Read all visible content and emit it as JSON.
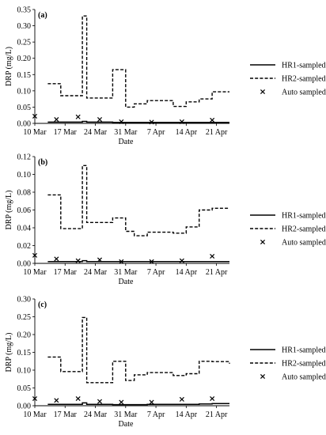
{
  "chart_data": [
    {
      "type": "line",
      "panel_label": "(a)",
      "xlabel": "Date",
      "ylabel": "DRP (mg/L)",
      "xlim": [
        "2020-03-10",
        "2020-04-24"
      ],
      "ylim": [
        0,
        0.35
      ],
      "yticks": [
        0.0,
        0.05,
        0.1,
        0.15,
        0.2,
        0.25,
        0.3,
        0.35
      ],
      "ytick_labels": [
        "0.00",
        "0.05",
        "0.10",
        "0.15",
        "0.20",
        "0.25",
        "0.30",
        "0.35"
      ],
      "xticks": [
        "2020-03-10",
        "2020-03-17",
        "2020-03-24",
        "2020-03-31",
        "2020-04-07",
        "2020-04-14",
        "2020-04-21"
      ],
      "xtick_labels": [
        "10 Mar",
        "17 Mar",
        "24 Mar",
        "31 Mar",
        "7 Apr",
        "14 Apr",
        "21 Apr"
      ],
      "grid": false,
      "legend_position": "right",
      "series": [
        {
          "name": "HR1-sampled",
          "style": "solid",
          "x": [
            "2020-03-13",
            "2020-03-16",
            "2020-03-18",
            "2020-03-21",
            "2020-03-22",
            "2020-03-25",
            "2020-03-28",
            "2020-03-31",
            "2020-04-02",
            "2020-04-05",
            "2020-04-07",
            "2020-04-11",
            "2020-04-14",
            "2020-04-17",
            "2020-04-20",
            "2020-04-24"
          ],
          "y": [
            0.004,
            0.004,
            0.004,
            0.006,
            0.004,
            0.004,
            0.003,
            0.003,
            0.003,
            0.003,
            0.003,
            0.003,
            0.003,
            0.003,
            0.003,
            0.003
          ]
        },
        {
          "name": "HR2-sampled",
          "style": "dashed",
          "x": [
            "2020-03-13",
            "2020-03-16",
            "2020-03-18",
            "2020-03-21",
            "2020-03-22",
            "2020-03-25",
            "2020-03-28",
            "2020-03-31",
            "2020-04-02",
            "2020-04-05",
            "2020-04-07",
            "2020-04-11",
            "2020-04-14",
            "2020-04-17",
            "2020-04-20",
            "2020-04-24"
          ],
          "y": [
            0.122,
            0.085,
            0.085,
            0.33,
            0.078,
            0.078,
            0.165,
            0.05,
            0.06,
            0.07,
            0.07,
            0.052,
            0.066,
            0.075,
            0.097,
            0.097
          ]
        },
        {
          "name": "Auto sampled",
          "style": "marker-x",
          "x": [
            "2020-03-10",
            "2020-03-15",
            "2020-03-20",
            "2020-03-25",
            "2020-03-30",
            "2020-04-06",
            "2020-04-13",
            "2020-04-20"
          ],
          "y": [
            0.022,
            0.012,
            0.02,
            0.012,
            0.005,
            0.004,
            0.005,
            0.01
          ]
        }
      ]
    },
    {
      "type": "line",
      "panel_label": "(b)",
      "xlabel": "Date",
      "ylabel": "DRP (mg/L)",
      "xlim": [
        "2020-03-10",
        "2020-04-24"
      ],
      "ylim": [
        0,
        0.12
      ],
      "yticks": [
        0.0,
        0.02,
        0.04,
        0.06,
        0.08,
        0.1,
        0.12
      ],
      "ytick_labels": [
        "0.00",
        "0.02",
        "0.04",
        "0.06",
        "0.08",
        "0.10",
        "0.12"
      ],
      "xticks": [
        "2020-03-10",
        "2020-03-17",
        "2020-03-24",
        "2020-03-31",
        "2020-04-07",
        "2020-04-14",
        "2020-04-21"
      ],
      "xtick_labels": [
        "10 Mar",
        "17 Mar",
        "24 Mar",
        "31 Mar",
        "7 Apr",
        "14 Apr",
        "21 Apr"
      ],
      "grid": false,
      "legend_position": "right",
      "series": [
        {
          "name": "HR1-sampled",
          "style": "solid",
          "x": [
            "2020-03-13",
            "2020-03-16",
            "2020-03-18",
            "2020-03-21",
            "2020-03-22",
            "2020-03-25",
            "2020-03-28",
            "2020-03-31",
            "2020-04-02",
            "2020-04-05",
            "2020-04-07",
            "2020-04-11",
            "2020-04-14",
            "2020-04-17",
            "2020-04-20",
            "2020-04-24"
          ],
          "y": [
            0.002,
            0.002,
            0.002,
            0.003,
            0.002,
            0.002,
            0.002,
            0.002,
            0.002,
            0.002,
            0.002,
            0.002,
            0.002,
            0.002,
            0.002,
            0.002
          ]
        },
        {
          "name": "HR2-sampled",
          "style": "dashed",
          "x": [
            "2020-03-13",
            "2020-03-16",
            "2020-03-18",
            "2020-03-21",
            "2020-03-22",
            "2020-03-25",
            "2020-03-28",
            "2020-03-31",
            "2020-04-02",
            "2020-04-05",
            "2020-04-07",
            "2020-04-11",
            "2020-04-14",
            "2020-04-17",
            "2020-04-20",
            "2020-04-24"
          ],
          "y": [
            0.077,
            0.039,
            0.039,
            0.11,
            0.046,
            0.046,
            0.051,
            0.036,
            0.031,
            0.035,
            0.035,
            0.034,
            0.041,
            0.06,
            0.062,
            0.062
          ]
        },
        {
          "name": "Auto sampled",
          "style": "marker-x",
          "x": [
            "2020-03-10",
            "2020-03-15",
            "2020-03-20",
            "2020-03-25",
            "2020-03-30",
            "2020-04-06",
            "2020-04-13",
            "2020-04-20"
          ],
          "y": [
            0.009,
            0.005,
            0.003,
            0.004,
            0.002,
            0.002,
            0.003,
            0.008
          ]
        }
      ]
    },
    {
      "type": "line",
      "panel_label": "(c)",
      "xlabel": "Date",
      "ylabel": "DRP (mg/L)",
      "xlim": [
        "2020-03-10",
        "2020-04-24"
      ],
      "ylim": [
        0,
        0.3
      ],
      "yticks": [
        0.0,
        0.05,
        0.1,
        0.15,
        0.2,
        0.25,
        0.3
      ],
      "ytick_labels": [
        "0.00",
        "0.05",
        "0.10",
        "0.15",
        "0.20",
        "0.25",
        "0.30"
      ],
      "xticks": [
        "2020-03-10",
        "2020-03-17",
        "2020-03-24",
        "2020-03-31",
        "2020-04-07",
        "2020-04-14",
        "2020-04-21"
      ],
      "xtick_labels": [
        "10 Mar",
        "17 Mar",
        "24 Mar",
        "31 Mar",
        "7 Apr",
        "14 Apr",
        "21 Apr"
      ],
      "grid": false,
      "legend_position": "right",
      "series": [
        {
          "name": "HR1-sampled",
          "style": "solid",
          "x": [
            "2020-03-13",
            "2020-03-16",
            "2020-03-18",
            "2020-03-21",
            "2020-03-22",
            "2020-03-25",
            "2020-03-28",
            "2020-03-31",
            "2020-04-02",
            "2020-04-05",
            "2020-04-07",
            "2020-04-11",
            "2020-04-14",
            "2020-04-17",
            "2020-04-20",
            "2020-04-24"
          ],
          "y": [
            0.004,
            0.004,
            0.004,
            0.008,
            0.004,
            0.004,
            0.003,
            0.003,
            0.003,
            0.004,
            0.004,
            0.004,
            0.004,
            0.005,
            0.006,
            0.006
          ]
        },
        {
          "name": "HR2-sampled",
          "style": "dashed",
          "x": [
            "2020-03-13",
            "2020-03-16",
            "2020-03-18",
            "2020-03-21",
            "2020-03-22",
            "2020-03-25",
            "2020-03-28",
            "2020-03-31",
            "2020-04-02",
            "2020-04-05",
            "2020-04-07",
            "2020-04-11",
            "2020-04-14",
            "2020-04-17",
            "2020-04-20",
            "2020-04-24"
          ],
          "y": [
            0.137,
            0.096,
            0.096,
            0.248,
            0.065,
            0.065,
            0.125,
            0.071,
            0.087,
            0.093,
            0.093,
            0.085,
            0.09,
            0.125,
            0.124,
            0.118
          ]
        },
        {
          "name": "Auto sampled",
          "style": "marker-x",
          "x": [
            "2020-03-10",
            "2020-03-15",
            "2020-03-20",
            "2020-03-25",
            "2020-03-30",
            "2020-04-06",
            "2020-04-13",
            "2020-04-20"
          ],
          "y": [
            0.02,
            0.015,
            0.02,
            0.012,
            0.01,
            0.01,
            0.018,
            0.02
          ]
        }
      ]
    }
  ]
}
